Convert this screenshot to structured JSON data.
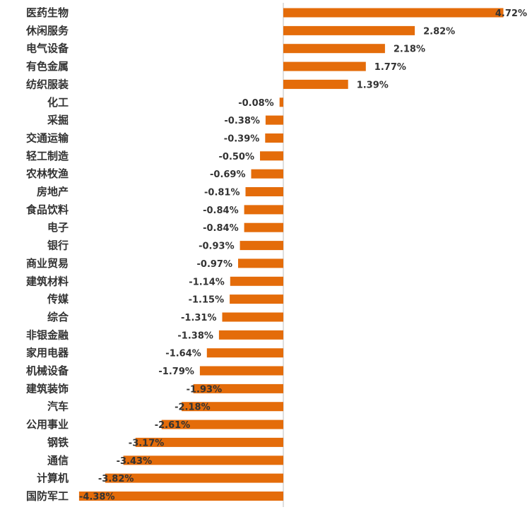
{
  "colors": {
    "bar": "#E46C0A",
    "axis": "#BFBFBF",
    "label_text": "#333333"
  },
  "chart_data": {
    "type": "bar",
    "orientation": "horizontal",
    "categories": [
      "医药生物",
      "休闲服务",
      "电气设备",
      "有色金属",
      "纺织服装",
      "化工",
      "采掘",
      "交通运输",
      "轻工制造",
      "农林牧渔",
      "房地产",
      "食品饮料",
      "电子",
      "银行",
      "商业贸易",
      "建筑材料",
      "传媒",
      "综合",
      "非银金融",
      "家用电器",
      "机械设备",
      "建筑装饰",
      "汽车",
      "公用事业",
      "钢铁",
      "通信",
      "计算机",
      "国防军工"
    ],
    "values": [
      4.72,
      2.82,
      2.18,
      1.77,
      1.39,
      -0.08,
      -0.38,
      -0.39,
      -0.5,
      -0.69,
      -0.81,
      -0.84,
      -0.84,
      -0.93,
      -0.97,
      -1.14,
      -1.15,
      -1.31,
      -1.38,
      -1.64,
      -1.79,
      -1.93,
      -2.18,
      -2.61,
      -3.17,
      -3.43,
      -3.82,
      -4.38
    ],
    "data_labels": [
      "4.72%",
      "2.82%",
      "2.18%",
      "1.77%",
      "1.39%",
      "-0.08%",
      "-0.38%",
      "-0.39%",
      "-0.50%",
      "-0.69%",
      "-0.81%",
      "-0.84%",
      "-0.84%",
      "-0.93%",
      "-0.97%",
      "-1.14%",
      "-1.15%",
      "-1.31%",
      "-1.38%",
      "-1.64%",
      "-1.79%",
      "-1.93%",
      "-2.18%",
      "-2.61%",
      "-3.17%",
      "-3.43%",
      "-3.82%",
      "-4.38%"
    ],
    "xlim": [
      -4.38,
      4.72
    ],
    "grid": false,
    "legend": "none",
    "title": "",
    "xlabel": "",
    "ylabel": ""
  }
}
